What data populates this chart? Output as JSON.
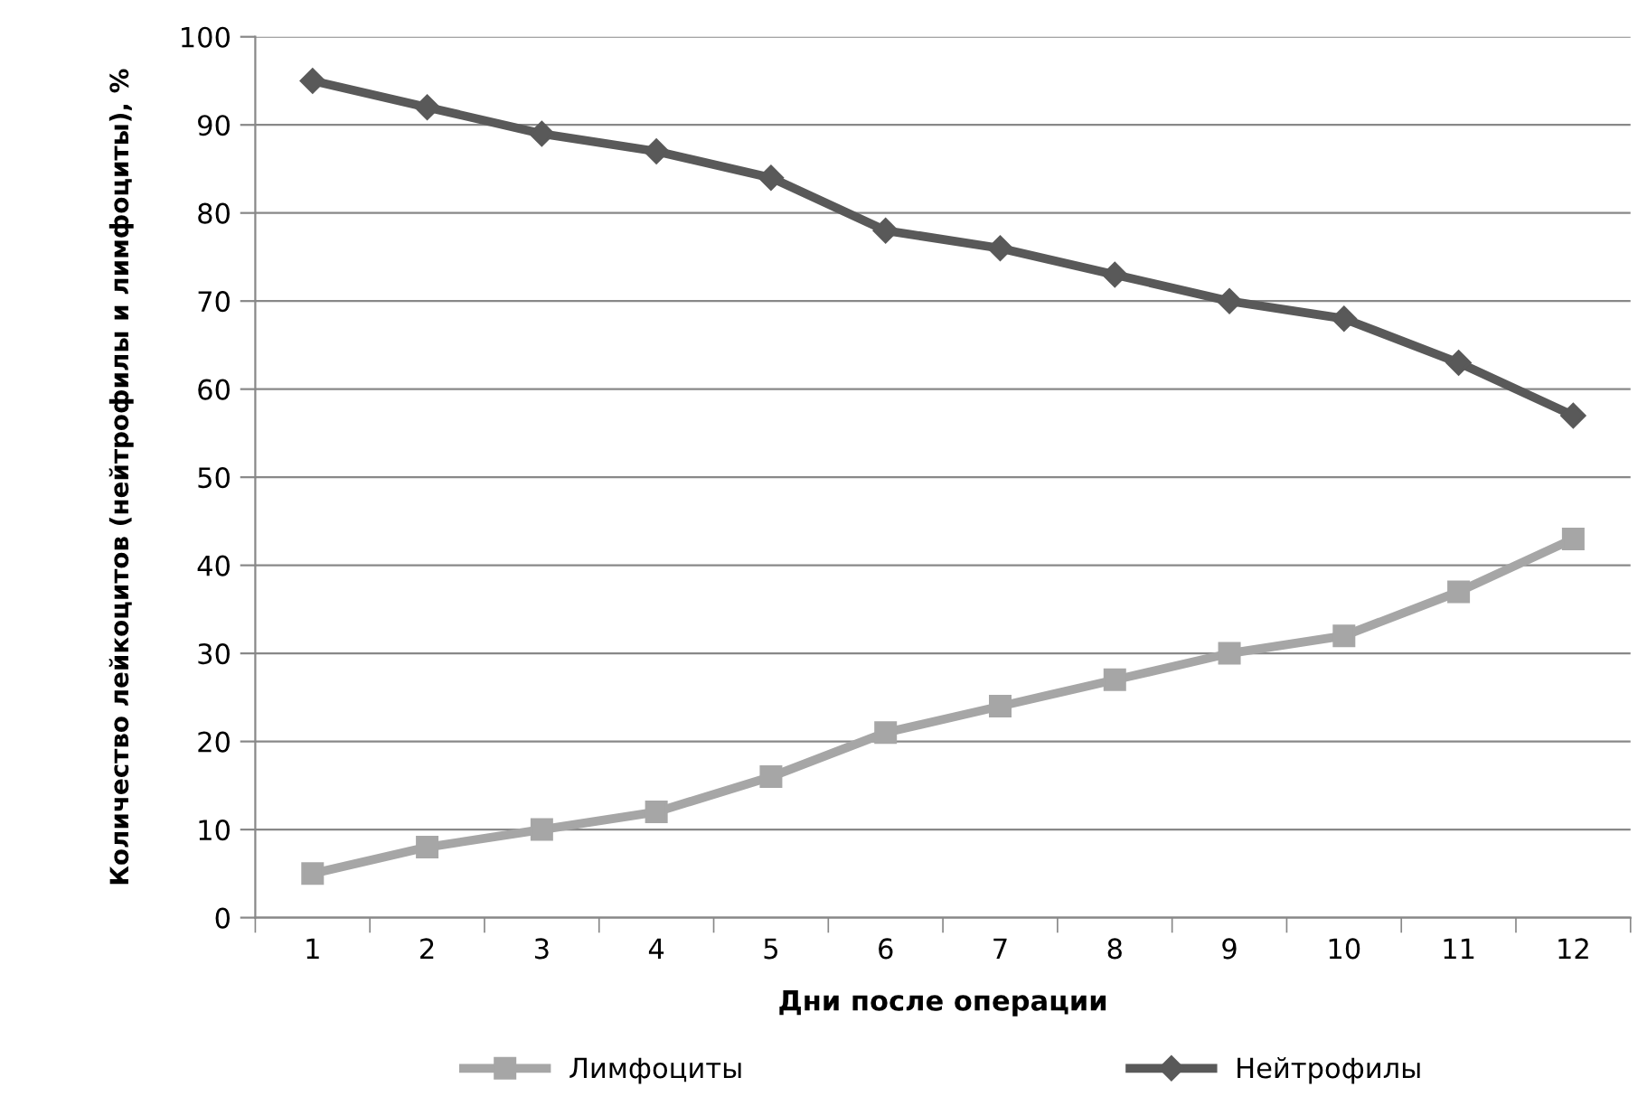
{
  "chart_data": {
    "type": "line",
    "xlabel": "Дни после операции",
    "ylabel": "Количество лейкоцитов (нейтрофилы и лимфоциты), %",
    "categories": [
      "1",
      "2",
      "3",
      "4",
      "5",
      "6",
      "7",
      "8",
      "9",
      "10",
      "11",
      "12"
    ],
    "series": [
      {
        "name": "Лимфоциты",
        "color": "#a6a6a6",
        "marker": "square",
        "values": [
          5,
          8,
          10,
          12,
          16,
          21,
          24,
          27,
          30,
          32,
          37,
          43
        ]
      },
      {
        "name": "Нейтрофилы",
        "color": "#595959",
        "marker": "diamond",
        "values": [
          95,
          92,
          89,
          87,
          84,
          78,
          76,
          73,
          70,
          68,
          63,
          57
        ]
      }
    ],
    "ylim": [
      0,
      100
    ],
    "yticks": [
      0,
      10,
      20,
      30,
      40,
      50,
      60,
      70,
      80,
      90,
      100
    ],
    "grid": "y",
    "legend": "bottom",
    "line_style": "solid"
  }
}
